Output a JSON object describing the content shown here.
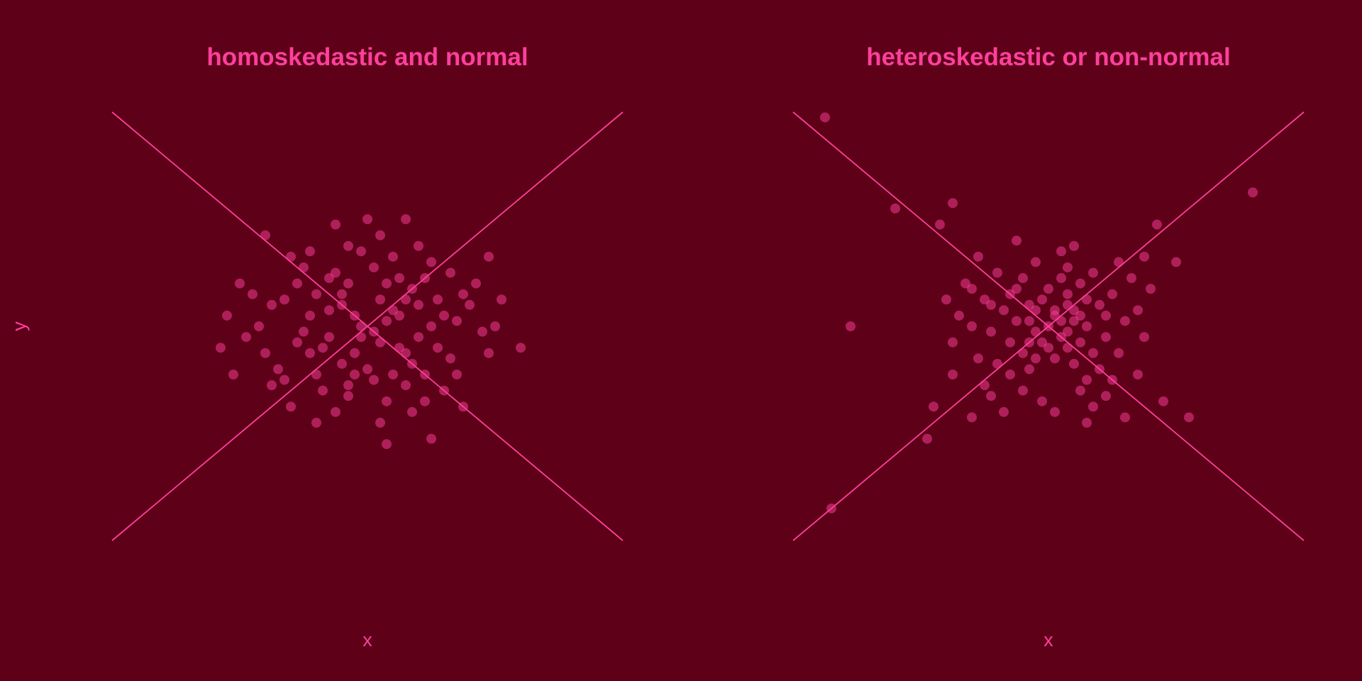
{
  "colors": {
    "background": "#5e0018",
    "accent": "#ff3f9c"
  },
  "shared_ylabel": "y",
  "chart_data": [
    {
      "type": "scatter",
      "title": "homoskedastic and normal",
      "xlabel": "x",
      "ylabel": "y",
      "xlim": [
        -4,
        4
      ],
      "ylim": [
        -4,
        4
      ],
      "grid": false,
      "reference_lines": [
        {
          "x": [
            -4,
            4
          ],
          "y": [
            -4,
            4
          ]
        },
        {
          "x": [
            -4,
            4
          ],
          "y": [
            4,
            -4
          ]
        }
      ],
      "points": [
        [
          -0.1,
          0.0
        ],
        [
          0.3,
          0.8
        ],
        [
          -1.5,
          0.4
        ],
        [
          1.4,
          0.1
        ],
        [
          0.6,
          -0.5
        ],
        [
          -0.8,
          -0.9
        ],
        [
          0.9,
          0.9
        ],
        [
          -0.3,
          -1.3
        ],
        [
          1.9,
          -0.5
        ],
        [
          -2.1,
          -0.9
        ],
        [
          2.1,
          0.5
        ],
        [
          -1.2,
          1.3
        ],
        [
          0.2,
          1.7
        ],
        [
          -0.5,
          1.9
        ],
        [
          0.7,
          -1.6
        ],
        [
          -0.8,
          -1.8
        ],
        [
          1.2,
          -1.2
        ],
        [
          2.4,
          -0.4
        ],
        [
          -2.3,
          -0.4
        ],
        [
          0.3,
          -2.2
        ],
        [
          1.0,
          -2.1
        ],
        [
          0.6,
          2.0
        ],
        [
          -1.6,
          1.7
        ],
        [
          1.9,
          1.3
        ],
        [
          -2.0,
          0.8
        ],
        [
          1.5,
          -1.5
        ],
        [
          -1.2,
          -1.5
        ],
        [
          0.1,
          1.1
        ],
        [
          -0.4,
          0.4
        ],
        [
          0.5,
          0.2
        ],
        [
          -0.9,
          0.2
        ],
        [
          0.8,
          -0.2
        ],
        [
          -0.2,
          -0.5
        ],
        [
          0.4,
          -0.9
        ],
        [
          -0.6,
          -0.2
        ],
        [
          1.1,
          0.5
        ],
        [
          -1.1,
          -0.3
        ],
        [
          0.0,
          -0.8
        ],
        [
          0.2,
          0.5
        ],
        [
          -0.5,
          1.0
        ],
        [
          1.3,
          -0.6
        ],
        [
          -1.4,
          -0.8
        ],
        [
          0.7,
          0.7
        ],
        [
          -0.3,
          0.8
        ],
        [
          0.9,
          -0.9
        ],
        [
          -0.8,
          0.6
        ],
        [
          1.6,
          0.4
        ],
        [
          -1.7,
          0.0
        ],
        [
          0.3,
          -1.4
        ],
        [
          -0.1,
          1.4
        ],
        [
          1.0,
          1.2
        ],
        [
          -1.0,
          1.1
        ],
        [
          0.6,
          -1.1
        ],
        [
          -0.7,
          -1.2
        ],
        [
          1.8,
          -0.1
        ],
        [
          -1.9,
          -0.2
        ],
        [
          0.2,
          -0.3
        ],
        [
          -0.4,
          -0.7
        ],
        [
          0.5,
          0.9
        ],
        [
          -0.6,
          0.3
        ],
        [
          1.2,
          0.2
        ],
        [
          -1.3,
          0.5
        ],
        [
          0.8,
          0.4
        ],
        [
          -0.2,
          0.2
        ],
        [
          0.1,
          -0.1
        ],
        [
          -0.9,
          -0.5
        ],
        [
          1.4,
          -0.9
        ],
        [
          -1.5,
          -1.1
        ],
        [
          0.4,
          1.3
        ],
        [
          -0.3,
          1.5
        ],
        [
          1.7,
          0.8
        ],
        [
          -1.8,
          0.6
        ],
        [
          0.9,
          -1.4
        ],
        [
          -0.5,
          -1.6
        ],
        [
          2.0,
          0.0
        ],
        [
          -2.2,
          0.2
        ],
        [
          0.0,
          2.0
        ],
        [
          0.2,
          -1.8
        ],
        [
          1.1,
          -0.4
        ],
        [
          -1.1,
          0.8
        ],
        [
          0.6,
          0.5
        ],
        [
          -0.7,
          -0.4
        ],
        [
          0.3,
          0.1
        ],
        [
          -0.1,
          -0.2
        ],
        [
          0.7,
          -0.7
        ],
        [
          -0.4,
          0.6
        ],
        [
          1.5,
          0.6
        ],
        [
          -1.6,
          -0.5
        ],
        [
          0.4,
          0.3
        ],
        [
          -0.2,
          -0.9
        ],
        [
          1.0,
          0.0
        ],
        [
          -1.0,
          -0.1
        ],
        [
          0.5,
          -0.4
        ],
        [
          -0.6,
          0.9
        ],
        [
          1.3,
          1.0
        ],
        [
          -1.3,
          -1.0
        ],
        [
          0.8,
          1.5
        ],
        [
          -0.9,
          1.4
        ],
        [
          0.1,
          -1.0
        ],
        [
          -0.3,
          -1.1
        ]
      ]
    },
    {
      "type": "scatter",
      "title": "heteroskedastic or non-normal",
      "xlabel": "x",
      "ylabel": "y",
      "xlim": [
        -4,
        4
      ],
      "ylim": [
        -4,
        4
      ],
      "grid": false,
      "reference_lines": [
        {
          "x": [
            -4,
            4
          ],
          "y": [
            -4,
            4
          ]
        },
        {
          "x": [
            -4,
            4
          ],
          "y": [
            4,
            -4
          ]
        }
      ],
      "points": [
        [
          -3.5,
          3.9
        ],
        [
          3.2,
          2.5
        ],
        [
          -3.1,
          0.0
        ],
        [
          -2.4,
          2.2
        ],
        [
          -1.5,
          2.3
        ],
        [
          -1.7,
          1.9
        ],
        [
          1.7,
          1.9
        ],
        [
          1.5,
          1.3
        ],
        [
          2.0,
          1.2
        ],
        [
          -1.8,
          -1.5
        ],
        [
          -3.4,
          -3.4
        ],
        [
          -1.9,
          -2.1
        ],
        [
          2.2,
          -1.7
        ],
        [
          1.2,
          -1.7
        ],
        [
          1.8,
          -1.4
        ],
        [
          -1.2,
          -1.7
        ],
        [
          0.6,
          -1.8
        ],
        [
          -1.5,
          -0.9
        ],
        [
          -1.2,
          0.7
        ],
        [
          1.4,
          -0.9
        ],
        [
          0.1,
          0.2
        ],
        [
          -0.3,
          0.4
        ],
        [
          0.4,
          0.3
        ],
        [
          0.2,
          -0.2
        ],
        [
          -0.2,
          -0.1
        ],
        [
          0.5,
          -0.3
        ],
        [
          -0.5,
          0.1
        ],
        [
          0.3,
          0.6
        ],
        [
          -0.4,
          -0.5
        ],
        [
          0.6,
          0.0
        ],
        [
          -0.1,
          0.5
        ],
        [
          0.0,
          -0.4
        ],
        [
          0.8,
          0.4
        ],
        [
          -0.7,
          0.3
        ],
        [
          0.4,
          -0.7
        ],
        [
          -0.6,
          -0.3
        ],
        [
          0.9,
          -0.2
        ],
        [
          -0.9,
          -0.1
        ],
        [
          0.2,
          0.9
        ],
        [
          -0.3,
          -0.8
        ],
        [
          1.0,
          0.6
        ],
        [
          -1.0,
          0.5
        ],
        [
          0.6,
          -1.0
        ],
        [
          -0.6,
          -0.9
        ],
        [
          1.1,
          -0.5
        ],
        [
          -1.1,
          -0.6
        ],
        [
          0.3,
          1.1
        ],
        [
          -0.2,
          1.2
        ],
        [
          0.7,
          1.0
        ],
        [
          -0.8,
          1.0
        ],
        [
          1.2,
          0.1
        ],
        [
          -1.2,
          0.0
        ],
        [
          0.5,
          -1.2
        ],
        [
          -0.4,
          -1.2
        ],
        [
          0.1,
          -0.6
        ],
        [
          -0.5,
          0.7
        ],
        [
          0.7,
          -0.5
        ],
        [
          0.0,
          0.0
        ],
        [
          0.3,
          -0.1
        ],
        [
          -0.2,
          0.3
        ],
        [
          0.4,
          0.1
        ],
        [
          -0.3,
          0.1
        ],
        [
          0.1,
          0.3
        ],
        [
          0.2,
          0.1
        ],
        [
          -0.1,
          -0.3
        ],
        [
          0.6,
          0.5
        ],
        [
          -0.6,
          0.6
        ],
        [
          0.8,
          -0.8
        ],
        [
          -0.8,
          -0.7
        ],
        [
          1.3,
          0.9
        ],
        [
          -1.3,
          0.8
        ],
        [
          0.9,
          -1.3
        ],
        [
          -0.9,
          -1.3
        ],
        [
          1.4,
          0.3
        ],
        [
          -1.4,
          0.2
        ],
        [
          0.2,
          1.4
        ],
        [
          -0.1,
          -1.4
        ],
        [
          1.5,
          -0.2
        ],
        [
          -1.5,
          -0.3
        ],
        [
          0.5,
          0.8
        ],
        [
          -0.4,
          0.9
        ],
        [
          0.0,
          0.7
        ],
        [
          0.3,
          -0.4
        ],
        [
          -0.3,
          -0.3
        ],
        [
          0.9,
          0.2
        ],
        [
          -0.9,
          0.4
        ],
        [
          1.1,
          1.2
        ],
        [
          -1.1,
          1.3
        ],
        [
          0.7,
          -1.5
        ],
        [
          -0.7,
          -1.6
        ],
        [
          1.0,
          -1.0
        ],
        [
          -1.0,
          -1.1
        ],
        [
          0.4,
          1.5
        ],
        [
          -0.5,
          1.6
        ],
        [
          1.6,
          0.7
        ],
        [
          -1.6,
          0.5
        ],
        [
          0.1,
          -1.6
        ],
        [
          0.3,
          0.4
        ],
        [
          -0.2,
          -0.6
        ],
        [
          0.5,
          0.2
        ]
      ]
    }
  ]
}
